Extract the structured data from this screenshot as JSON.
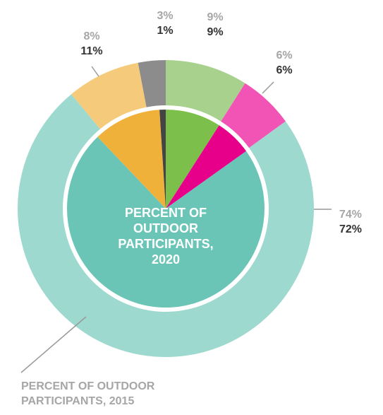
{
  "chart_data": {
    "type": "nested-donut",
    "series": [
      {
        "name": "PERCENT OF OUTDOOR PARTICIPANTS, 2015",
        "values": [
          9,
          6,
          74,
          8,
          3
        ],
        "value_labels": [
          "9%",
          "6%",
          "74%",
          "8%",
          "3%"
        ],
        "colors": [
          "#a9d18e",
          "#f154b4",
          "#9ed9cf",
          "#f5ca7b",
          "#8c8c8c"
        ]
      },
      {
        "name": "PERCENT OF OUTDOOR PARTICIPANTS, 2020",
        "values": [
          9,
          6,
          72,
          11,
          1
        ],
        "value_labels": [
          "9%",
          "6%",
          "72%",
          "11%",
          "1%"
        ],
        "colors": [
          "#7dbf4b",
          "#e6008a",
          "#6bc5b7",
          "#f0b13b",
          "#444444"
        ]
      }
    ]
  }
}
